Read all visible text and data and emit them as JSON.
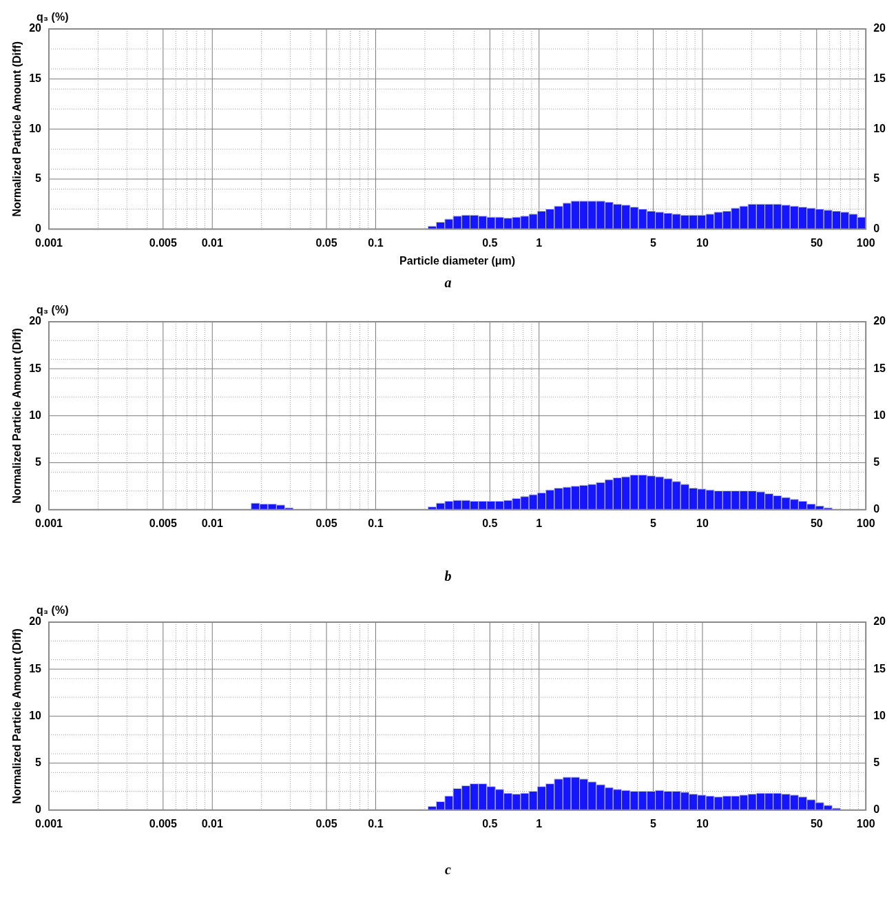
{
  "chart_data": [
    {
      "type": "histogram",
      "title": "q₃ (%)",
      "xlabel": "Particle diameter (μm)",
      "ylabel": "Normalized Particle Amount (Diff)",
      "annotations": [
        "a"
      ],
      "color": "#1515ff",
      "grid": true,
      "log": "x",
      "bins": [
        0.209,
        0.235,
        0.265,
        0.298,
        0.336,
        0.378,
        0.426,
        0.479,
        0.54,
        0.608,
        0.685,
        0.771,
        0.868,
        0.977,
        1.1,
        1.24,
        1.4,
        1.57,
        1.77,
        1.99,
        2.24,
        2.53,
        2.84,
        3.2,
        3.61,
        4.06,
        4.57,
        5.15,
        5.8,
        6.53,
        7.35,
        8.28,
        9.32,
        10.5,
        11.8,
        13.3,
        15.0,
        16.9,
        19.0,
        21.4,
        24.1,
        27.1,
        30.5,
        34.4,
        38.7,
        43.6,
        49.1,
        55.3,
        62.2,
        70.1,
        78.9,
        88.8,
        100
      ],
      "values": [
        0.3,
        0.7,
        1.0,
        1.3,
        1.4,
        1.4,
        1.3,
        1.2,
        1.2,
        1.1,
        1.2,
        1.3,
        1.5,
        1.8,
        2.0,
        2.3,
        2.6,
        2.8,
        2.8,
        2.8,
        2.8,
        2.7,
        2.5,
        2.4,
        2.2,
        2.0,
        1.8,
        1.7,
        1.6,
        1.5,
        1.4,
        1.4,
        1.4,
        1.5,
        1.7,
        1.8,
        2.1,
        2.3,
        2.5,
        2.5,
        2.5,
        2.5,
        2.4,
        2.3,
        2.2,
        2.1,
        2.0,
        1.9,
        1.8,
        1.7,
        1.5,
        1.2
      ],
      "xlim": [
        0.001,
        100
      ],
      "xticks": [
        0.001,
        {
          "value": 0.002,
          "label": null
        },
        {
          "value": 0.003,
          "label": null
        },
        {
          "value": 0.004,
          "label": null
        },
        0.005,
        {
          "value": 0.006,
          "label": null
        },
        {
          "value": 0.007,
          "label": null
        },
        {
          "value": 0.008,
          "label": null
        },
        {
          "value": 0.009,
          "label": null
        },
        0.01,
        {
          "value": 0.02,
          "label": null
        },
        {
          "value": 0.03,
          "label": null
        },
        {
          "value": 0.04,
          "label": null
        },
        0.05,
        {
          "value": 0.06,
          "label": null
        },
        {
          "value": 0.07,
          "label": null
        },
        {
          "value": 0.08,
          "label": null
        },
        {
          "value": 0.09,
          "label": null
        },
        0.1,
        {
          "value": 0.2,
          "label": null
        },
        {
          "value": 0.3,
          "label": null
        },
        {
          "value": 0.4,
          "label": null
        },
        0.5,
        {
          "value": 0.6,
          "label": null
        },
        {
          "value": 0.7,
          "label": null
        },
        {
          "value": 0.8,
          "label": null
        },
        {
          "value": 0.9,
          "label": null
        },
        1,
        {
          "value": 2,
          "label": null
        },
        {
          "value": 3,
          "label": null
        },
        {
          "value": 4,
          "label": null
        },
        5,
        {
          "value": 6,
          "label": null
        },
        {
          "value": 7,
          "label": null
        },
        {
          "value": 8,
          "label": null
        },
        {
          "value": 9,
          "label": null
        },
        10,
        {
          "value": 20,
          "label": null
        },
        {
          "value": 30,
          "label": null
        },
        {
          "value": 40,
          "label": null
        },
        50,
        {
          "value": 60,
          "label": null
        },
        {
          "value": 70,
          "label": null
        },
        {
          "value": 80,
          "label": null
        },
        {
          "value": 90,
          "label": null
        },
        100
      ],
      "ylim": [
        0,
        20
      ],
      "yticks": [
        0,
        {
          "value": 2,
          "label": null
        },
        {
          "value": 4,
          "label": null
        },
        5,
        {
          "value": 6,
          "label": null
        },
        {
          "value": 8,
          "label": null
        },
        10,
        {
          "value": 12,
          "label": null
        },
        {
          "value": 14,
          "label": null
        },
        15,
        {
          "value": 16,
          "label": null
        },
        {
          "value": 18,
          "label": null
        },
        20
      ],
      "y2lim": [
        0,
        20
      ],
      "y2ticks": [
        0,
        5,
        10,
        15,
        20
      ]
    },
    {
      "type": "histogram",
      "title": "q₃ (%)",
      "ylabel": "Normalized Particle Amount (Diff)",
      "annotations": [
        "b"
      ],
      "color": "#1515ff",
      "grid": true,
      "log": "x",
      "bins": [
        0.0173,
        0.0195,
        0.0219,
        0.0247,
        0.0278,
        0.0313,
        0.209,
        0.235,
        0.265,
        0.298,
        0.336,
        0.378,
        0.426,
        0.479,
        0.54,
        0.608,
        0.685,
        0.771,
        0.868,
        0.977,
        1.1,
        1.24,
        1.4,
        1.57,
        1.77,
        1.99,
        2.24,
        2.53,
        2.84,
        3.2,
        3.61,
        4.06,
        4.57,
        5.15,
        5.8,
        6.53,
        7.35,
        8.28,
        9.32,
        10.5,
        11.8,
        13.3,
        15.0,
        16.9,
        19.0,
        21.4,
        24.1,
        27.1,
        30.5,
        34.4,
        38.7,
        43.6,
        49.1,
        55.3,
        62.2
      ],
      "values": [
        0.7,
        0.6,
        0.6,
        0.5,
        0.2,
        null,
        0.3,
        0.7,
        0.9,
        1.0,
        1.0,
        0.9,
        0.9,
        0.9,
        0.9,
        1.0,
        1.2,
        1.4,
        1.6,
        1.8,
        2.1,
        2.3,
        2.4,
        2.5,
        2.6,
        2.7,
        2.9,
        3.2,
        3.4,
        3.5,
        3.7,
        3.7,
        3.6,
        3.5,
        3.3,
        3.0,
        2.7,
        2.3,
        2.2,
        2.1,
        2.0,
        2.0,
        2.0,
        2.0,
        2.0,
        1.9,
        1.7,
        1.5,
        1.3,
        1.1,
        0.9,
        0.6,
        0.4,
        0.2
      ],
      "xlim": [
        0.001,
        100
      ],
      "xticks": [
        0.001,
        {
          "value": 0.002,
          "label": null
        },
        {
          "value": 0.003,
          "label": null
        },
        {
          "value": 0.004,
          "label": null
        },
        0.005,
        {
          "value": 0.006,
          "label": null
        },
        {
          "value": 0.007,
          "label": null
        },
        {
          "value": 0.008,
          "label": null
        },
        {
          "value": 0.009,
          "label": null
        },
        0.01,
        {
          "value": 0.02,
          "label": null
        },
        {
          "value": 0.03,
          "label": null
        },
        {
          "value": 0.04,
          "label": null
        },
        0.05,
        {
          "value": 0.06,
          "label": null
        },
        {
          "value": 0.07,
          "label": null
        },
        {
          "value": 0.08,
          "label": null
        },
        {
          "value": 0.09,
          "label": null
        },
        0.1,
        {
          "value": 0.2,
          "label": null
        },
        {
          "value": 0.3,
          "label": null
        },
        {
          "value": 0.4,
          "label": null
        },
        0.5,
        {
          "value": 0.6,
          "label": null
        },
        {
          "value": 0.7,
          "label": null
        },
        {
          "value": 0.8,
          "label": null
        },
        {
          "value": 0.9,
          "label": null
        },
        1,
        {
          "value": 2,
          "label": null
        },
        {
          "value": 3,
          "label": null
        },
        {
          "value": 4,
          "label": null
        },
        5,
        {
          "value": 6,
          "label": null
        },
        {
          "value": 7,
          "label": null
        },
        {
          "value": 8,
          "label": null
        },
        {
          "value": 9,
          "label": null
        },
        10,
        {
          "value": 20,
          "label": null
        },
        {
          "value": 30,
          "label": null
        },
        {
          "value": 40,
          "label": null
        },
        50,
        {
          "value": 60,
          "label": null
        },
        {
          "value": 70,
          "label": null
        },
        {
          "value": 80,
          "label": null
        },
        {
          "value": 90,
          "label": null
        },
        100
      ],
      "ylim": [
        0,
        20
      ],
      "yticks": [
        0,
        {
          "value": 2,
          "label": null
        },
        {
          "value": 4,
          "label": null
        },
        5,
        {
          "value": 6,
          "label": null
        },
        {
          "value": 8,
          "label": null
        },
        10,
        {
          "value": 12,
          "label": null
        },
        {
          "value": 14,
          "label": null
        },
        15,
        {
          "value": 16,
          "label": null
        },
        {
          "value": 18,
          "label": null
        },
        20
      ],
      "y2lim": [
        0,
        20
      ],
      "y2ticks": [
        0,
        5,
        10,
        15,
        20
      ]
    },
    {
      "type": "histogram",
      "title": "q₃ (%)",
      "ylabel": "Normalized Particle Amount (Diff)",
      "annotations": [
        "c"
      ],
      "color": "#1515ff",
      "grid": true,
      "log": "x",
      "bins": [
        0.209,
        0.235,
        0.265,
        0.298,
        0.336,
        0.378,
        0.426,
        0.479,
        0.54,
        0.608,
        0.685,
        0.771,
        0.868,
        0.977,
        1.1,
        1.24,
        1.4,
        1.57,
        1.77,
        1.99,
        2.24,
        2.53,
        2.84,
        3.2,
        3.61,
        4.06,
        4.57,
        5.15,
        5.8,
        6.53,
        7.35,
        8.28,
        9.32,
        10.5,
        11.8,
        13.3,
        15.0,
        16.9,
        19.0,
        21.4,
        24.1,
        27.1,
        30.5,
        34.4,
        38.7,
        43.6,
        49.1,
        55.3,
        62.2,
        70.1
      ],
      "values": [
        0.4,
        0.9,
        1.5,
        2.3,
        2.6,
        2.8,
        2.8,
        2.5,
        2.2,
        1.8,
        1.7,
        1.8,
        2.0,
        2.5,
        2.8,
        3.3,
        3.5,
        3.5,
        3.3,
        3.0,
        2.7,
        2.4,
        2.2,
        2.1,
        2.0,
        2.0,
        2.0,
        2.1,
        2.0,
        2.0,
        1.9,
        1.7,
        1.6,
        1.5,
        1.4,
        1.5,
        1.5,
        1.6,
        1.7,
        1.8,
        1.8,
        1.8,
        1.7,
        1.6,
        1.4,
        1.1,
        0.8,
        0.5,
        0.2
      ],
      "xlim": [
        0.001,
        100
      ],
      "xticks": [
        0.001,
        {
          "value": 0.002,
          "label": null
        },
        {
          "value": 0.003,
          "label": null
        },
        {
          "value": 0.004,
          "label": null
        },
        0.005,
        {
          "value": 0.006,
          "label": null
        },
        {
          "value": 0.007,
          "label": null
        },
        {
          "value": 0.008,
          "label": null
        },
        {
          "value": 0.009,
          "label": null
        },
        0.01,
        {
          "value": 0.02,
          "label": null
        },
        {
          "value": 0.03,
          "label": null
        },
        {
          "value": 0.04,
          "label": null
        },
        0.05,
        {
          "value": 0.06,
          "label": null
        },
        {
          "value": 0.07,
          "label": null
        },
        {
          "value": 0.08,
          "label": null
        },
        {
          "value": 0.09,
          "label": null
        },
        0.1,
        {
          "value": 0.2,
          "label": null
        },
        {
          "value": 0.3,
          "label": null
        },
        {
          "value": 0.4,
          "label": null
        },
        0.5,
        {
          "value": 0.6,
          "label": null
        },
        {
          "value": 0.7,
          "label": null
        },
        {
          "value": 0.8,
          "label": null
        },
        {
          "value": 0.9,
          "label": null
        },
        1,
        {
          "value": 2,
          "label": null
        },
        {
          "value": 3,
          "label": null
        },
        {
          "value": 4,
          "label": null
        },
        5,
        {
          "value": 6,
          "label": null
        },
        {
          "value": 7,
          "label": null
        },
        {
          "value": 8,
          "label": null
        },
        {
          "value": 9,
          "label": null
        },
        10,
        {
          "value": 20,
          "label": null
        },
        {
          "value": 30,
          "label": null
        },
        {
          "value": 40,
          "label": null
        },
        50,
        {
          "value": 60,
          "label": null
        },
        {
          "value": 70,
          "label": null
        },
        {
          "value": 80,
          "label": null
        },
        {
          "value": 90,
          "label": null
        },
        100
      ],
      "ylim": [
        0,
        20
      ],
      "yticks": [
        0,
        {
          "value": 2,
          "label": null
        },
        {
          "value": 4,
          "label": null
        },
        5,
        {
          "value": 6,
          "label": null
        },
        {
          "value": 8,
          "label": null
        },
        10,
        {
          "value": 12,
          "label": null
        },
        {
          "value": 14,
          "label": null
        },
        15,
        {
          "value": 16,
          "label": null
        },
        {
          "value": 18,
          "label": null
        },
        20
      ],
      "y2lim": [
        0,
        20
      ],
      "y2ticks": [
        0,
        5,
        10,
        15,
        20
      ]
    }
  ]
}
